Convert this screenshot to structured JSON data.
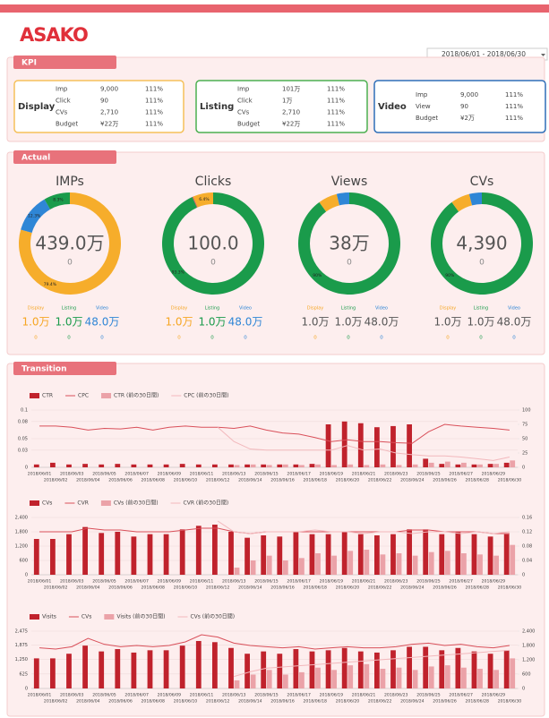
{
  "header": {
    "logo": "ASAKO",
    "date_range": "2018/06/01 - 2018/06/30"
  },
  "kpi": {
    "title": "KPI",
    "cards": [
      {
        "name": "Display",
        "color": "#f5c05a",
        "rows": [
          [
            "Imp",
            "9,000",
            "111%"
          ],
          [
            "Click",
            "90",
            "111%"
          ],
          [
            "CVs",
            "2,710",
            "111%"
          ],
          [
            "Budget",
            "¥22万",
            "111%"
          ]
        ]
      },
      {
        "name": "Listing",
        "color": "#4caf50",
        "rows": [
          [
            "Imp",
            "101万",
            "111%"
          ],
          [
            "Click",
            "1万",
            "111%"
          ],
          [
            "CVs",
            "2,710",
            "111%"
          ],
          [
            "Budget",
            "¥22万",
            "111%"
          ]
        ]
      },
      {
        "name": "Video",
        "color": "#2f6fb8",
        "rows": [
          [
            "Imp",
            "9,000",
            "111%"
          ],
          [
            "View",
            "90",
            "111%"
          ],
          [
            "Budget",
            "¥2万",
            "111%"
          ]
        ]
      }
    ]
  },
  "actual": {
    "title": "Actual",
    "donuts": [
      {
        "title": "IMPs",
        "value": "439.0万",
        "sub": "0",
        "segments": {
          "values": [
            79.4,
            12.3,
            8.3
          ],
          "value_labels": [
            "79.4%",
            "12.3%",
            "8.3%"
          ],
          "colors": [
            "#f6ad2b",
            "#2f86d6",
            "#1a9b4b"
          ]
        },
        "breakdown": [
          {
            "name": "Display",
            "value": "1.0万",
            "sub": "0",
            "color": "#f6a623",
            "value_color": "#f6a623"
          },
          {
            "name": "Listing",
            "value": "1.0万",
            "sub": "0",
            "color": "#1a9b4b",
            "value_color": "#1a9b4b"
          },
          {
            "name": "Video",
            "value": "48.0万",
            "sub": "0",
            "color": "#2f86d6",
            "value_color": "#2f86d6"
          }
        ]
      },
      {
        "title": "Clicks",
        "value": "100.0",
        "sub": "0",
        "segments": {
          "values": [
            93.3,
            0.3,
            6.4
          ],
          "value_labels": [
            "93.3%",
            null,
            "6.4%"
          ],
          "colors": [
            "#1a9b4b",
            "#e05a5a",
            "#f6ad2b"
          ]
        },
        "breakdown": [
          {
            "name": "Display",
            "value": "1.0万",
            "sub": "0",
            "color": "#f6a623",
            "value_color": "#f6a623"
          },
          {
            "name": "Listing",
            "value": "1.0万",
            "sub": "0",
            "color": "#1a9b4b",
            "value_color": "#1a9b4b"
          },
          {
            "name": "Video",
            "value": "48.0万",
            "sub": "0",
            "color": "#2f86d6",
            "value_color": "#2f86d6"
          }
        ]
      },
      {
        "title": "Views",
        "value": "38万",
        "sub": "0",
        "segments": {
          "values": [
            90,
            6,
            4
          ],
          "value_labels": [
            "90%",
            null,
            null
          ],
          "colors": [
            "#1a9b4b",
            "#f6ad2b",
            "#2f86d6"
          ]
        },
        "breakdown": [
          {
            "name": "Display",
            "value": "1.0万",
            "sub": "0",
            "color": "#f6a623",
            "value_color": "#555"
          },
          {
            "name": "Listing",
            "value": "1.0万",
            "sub": "0",
            "color": "#1a9b4b",
            "value_color": "#555"
          },
          {
            "name": "Video",
            "value": "48.0万",
            "sub": "0",
            "color": "#2f86d6",
            "value_color": "#555"
          }
        ]
      },
      {
        "title": "CVs",
        "value": "4,390",
        "sub": "0",
        "segments": {
          "values": [
            90,
            6,
            4
          ],
          "value_labels": [
            "90%",
            null,
            null
          ],
          "colors": [
            "#1a9b4b",
            "#f6ad2b",
            "#2f86d6"
          ]
        },
        "breakdown": [
          {
            "name": "Display",
            "value": "1.0万",
            "sub": "0",
            "color": "#f6a623",
            "value_color": "#555"
          },
          {
            "name": "Listing",
            "value": "1.0万",
            "sub": "0",
            "color": "#1a9b4b",
            "value_color": "#555"
          },
          {
            "name": "Video",
            "value": "48.0万",
            "sub": "0",
            "color": "#2f86d6",
            "value_color": "#555"
          }
        ]
      }
    ]
  },
  "transition": {
    "title": "Transition"
  },
  "chart_data": [
    {
      "type": "combo",
      "categories": [
        "2018/06/01",
        "2018/06/02",
        "2018/06/03",
        "2018/06/04",
        "2018/06/05",
        "2018/06/06",
        "2018/06/07",
        "2018/06/08",
        "2018/06/09",
        "2018/06/10",
        "2018/06/11",
        "2018/06/12",
        "2018/06/13",
        "2018/06/14",
        "2018/06/15",
        "2018/06/16",
        "2018/06/17",
        "2018/06/18",
        "2018/06/19",
        "2018/06/20",
        "2018/06/21",
        "2018/06/22",
        "2018/06/23",
        "2018/06/24",
        "2018/06/25",
        "2018/06/26",
        "2018/06/27",
        "2018/06/28",
        "2018/06/29",
        "2018/06/30"
      ],
      "ylim": [
        0,
        0.1
      ],
      "yticks": [
        0,
        0.03,
        0.05,
        0.08,
        0.1
      ],
      "y2lim": [
        0,
        100
      ],
      "y2ticks": [
        0,
        25,
        50,
        75,
        100
      ],
      "grid": true,
      "series": [
        {
          "name": "CTR",
          "kind": "bar",
          "color": "#c0222c",
          "values": [
            0.005,
            0.008,
            0.005,
            0.006,
            0.005,
            0.006,
            0.005,
            0.005,
            0.005,
            0.006,
            0.005,
            0.005,
            0.005,
            0.005,
            0.005,
            0.005,
            0.005,
            0.006,
            0.075,
            0.08,
            0.077,
            0.07,
            0.072,
            0.075,
            0.015,
            0.006,
            0.005,
            0.005,
            0.006,
            0.008
          ]
        },
        {
          "name": "CPC",
          "kind": "line",
          "axis": "y2",
          "color": "#d9505a",
          "values": [
            72,
            72,
            70,
            65,
            68,
            67,
            70,
            65,
            70,
            72,
            70,
            70,
            68,
            72,
            65,
            60,
            58,
            52,
            45,
            48,
            45,
            45,
            43,
            42,
            62,
            75,
            72,
            70,
            68,
            65
          ]
        },
        {
          "name": "CTR (前の30日間)",
          "kind": "bar",
          "color": "#eba2a8",
          "values": [
            null,
            null,
            null,
            null,
            null,
            null,
            null,
            null,
            null,
            null,
            null,
            null,
            0.004,
            0.005,
            0.004,
            0.005,
            0.004,
            0.005,
            0.004,
            0.005,
            0.004,
            0.005,
            0.004,
            0.005,
            0.008,
            0.01,
            0.008,
            0.005,
            0.006,
            0.012
          ]
        },
        {
          "name": "CPC (前の30日間)",
          "kind": "line",
          "axis": "y2",
          "color": "#f2b8bc",
          "values": [
            null,
            null,
            null,
            null,
            null,
            null,
            null,
            null,
            null,
            null,
            null,
            70,
            45,
            32,
            30,
            30,
            30,
            30,
            30,
            38,
            30,
            32,
            25,
            22,
            20,
            20,
            18,
            15,
            12,
            18
          ]
        }
      ]
    },
    {
      "type": "combo",
      "categories": [
        "2018/06/01",
        "2018/06/02",
        "2018/06/03",
        "2018/06/04",
        "2018/06/05",
        "2018/06/06",
        "2018/06/07",
        "2018/06/08",
        "2018/06/09",
        "2018/06/10",
        "2018/06/11",
        "2018/06/12",
        "2018/06/13",
        "2018/06/14",
        "2018/06/15",
        "2018/06/16",
        "2018/06/17",
        "2018/06/18",
        "2018/06/19",
        "2018/06/20",
        "2018/06/21",
        "2018/06/22",
        "2018/06/23",
        "2018/06/24",
        "2018/06/25",
        "2018/06/26",
        "2018/06/27",
        "2018/06/28",
        "2018/06/29",
        "2018/06/30"
      ],
      "ylim": [
        0,
        2400
      ],
      "yticks": [
        0,
        600,
        {
          "value": 1200,
          "label": "1,200"
        },
        {
          "value": 1800,
          "label": "1,800"
        },
        {
          "value": 2400,
          "label": "2,400"
        }
      ],
      "y2lim": [
        0,
        0.16
      ],
      "y2ticks": [
        0,
        0.04,
        0.08,
        0.12,
        0.16
      ],
      "grid": true,
      "series": [
        {
          "name": "CVs",
          "kind": "bar",
          "color": "#c0222c",
          "values": [
            1500,
            1500,
            1700,
            2000,
            1750,
            1800,
            1600,
            1700,
            1700,
            1900,
            2050,
            2100,
            1800,
            1550,
            1650,
            1600,
            1800,
            1700,
            1700,
            1800,
            1700,
            1650,
            1700,
            1900,
            1900,
            1700,
            1800,
            1700,
            1600,
            1700
          ]
        },
        {
          "name": "CVR",
          "kind": "line",
          "axis": "y2",
          "color": "#d9505a",
          "values": [
            0.12,
            0.12,
            0.12,
            0.13,
            0.125,
            0.125,
            0.12,
            0.12,
            0.12,
            0.125,
            0.13,
            0.13,
            0.12,
            0.115,
            0.12,
            0.12,
            0.12,
            0.12,
            0.12,
            0.12,
            0.12,
            0.12,
            0.12,
            0.125,
            0.125,
            0.12,
            0.12,
            0.12,
            0.115,
            0.115
          ]
        },
        {
          "name": "CVs (前の30日間)",
          "kind": "bar",
          "color": "#eba2a8",
          "values": [
            null,
            null,
            null,
            null,
            null,
            null,
            null,
            null,
            null,
            null,
            null,
            null,
            300,
            600,
            800,
            600,
            700,
            900,
            800,
            1000,
            1050,
            850,
            900,
            800,
            950,
            1000,
            900,
            850,
            800,
            1250
          ]
        },
        {
          "name": "CVR (前の30日間)",
          "kind": "line",
          "axis": "y2",
          "color": "#f2b8bc",
          "values": [
            null,
            null,
            null,
            null,
            null,
            null,
            null,
            null,
            null,
            null,
            null,
            0.15,
            0.12,
            0.115,
            0.12,
            0.12,
            0.12,
            0.125,
            0.12,
            0.12,
            0.115,
            0.12,
            0.12,
            0.115,
            0.12,
            0.12,
            0.115,
            0.12,
            0.115,
            0.12
          ]
        }
      ]
    },
    {
      "type": "combo",
      "categories": [
        "2018/06/01",
        "2018/06/02",
        "2018/06/03",
        "2018/06/04",
        "2018/06/05",
        "2018/06/06",
        "2018/06/07",
        "2018/06/08",
        "2018/06/09",
        "2018/06/10",
        "2018/06/11",
        "2018/06/12",
        "2018/06/13",
        "2018/06/14",
        "2018/06/15",
        "2018/06/16",
        "2018/06/17",
        "2018/06/18",
        "2018/06/19",
        "2018/06/20",
        "2018/06/21",
        "2018/06/22",
        "2018/06/23",
        "2018/06/24",
        "2018/06/25",
        "2018/06/26",
        "2018/06/27",
        "2018/06/28",
        "2018/06/29",
        "2018/06/30"
      ],
      "ylim": [
        0,
        2475
      ],
      "yticks": [
        0,
        625,
        {
          "value": 1250,
          "label": "1,250"
        },
        {
          "value": 1875,
          "label": "1,875"
        },
        {
          "value": 2475,
          "label": "2,475"
        }
      ],
      "y2lim": [
        0,
        2400
      ],
      "y2ticks": [
        0,
        600,
        {
          "value": 1200,
          "label": "1,200"
        },
        {
          "value": 1800,
          "label": "1,800"
        },
        {
          "value": 2400,
          "label": "2,400"
        }
      ],
      "grid": true,
      "series": [
        {
          "name": "Visits",
          "kind": "bar",
          "color": "#c0222c",
          "values": [
            1300,
            1300,
            1500,
            1850,
            1600,
            1700,
            1550,
            1650,
            1650,
            1850,
            2050,
            2000,
            1750,
            1500,
            1600,
            1500,
            1700,
            1600,
            1650,
            1750,
            1600,
            1550,
            1650,
            1800,
            1800,
            1650,
            1750,
            1600,
            1500,
            1650
          ]
        },
        {
          "name": "CVs",
          "kind": "line",
          "axis": "y2",
          "color": "#d9505a",
          "values": [
            1700,
            1650,
            1750,
            2100,
            1850,
            1750,
            1800,
            1750,
            1800,
            1950,
            2250,
            2150,
            1900,
            1800,
            1750,
            1700,
            1750,
            1650,
            1700,
            1750,
            1700,
            1700,
            1750,
            1850,
            1900,
            1800,
            1850,
            1750,
            1700,
            1800
          ]
        },
        {
          "name": "Visits (前の30日間)",
          "kind": "bar",
          "color": "#eba2a8",
          "values": [
            null,
            null,
            null,
            null,
            null,
            null,
            null,
            null,
            null,
            null,
            null,
            null,
            350,
            600,
            800,
            600,
            700,
            900,
            800,
            1000,
            1050,
            850,
            900,
            800,
            950,
            1000,
            900,
            850,
            800,
            1300
          ]
        },
        {
          "name": "CVs (前の30日間)",
          "kind": "line",
          "axis": "y2",
          "color": "#f2b8bc",
          "values": [
            null,
            null,
            null,
            null,
            null,
            null,
            null,
            null,
            null,
            null,
            null,
            null,
            500,
            700,
            850,
            900,
            950,
            1000,
            1050,
            1100,
            1150,
            1200,
            1250,
            1300,
            1350,
            1400,
            1450,
            1500,
            1550,
            1600
          ]
        }
      ]
    }
  ]
}
